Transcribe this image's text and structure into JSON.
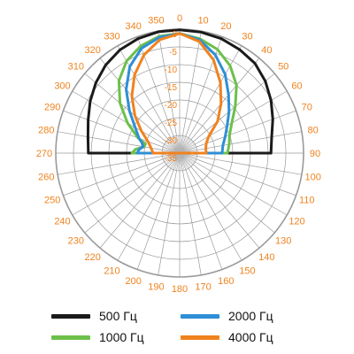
{
  "chart_data": {
    "type": "polar-line",
    "angle_ticks": [
      "0",
      "10",
      "20",
      "30",
      "40",
      "50",
      "60",
      "70",
      "80",
      "90",
      "100",
      "110",
      "120",
      "130",
      "140",
      "150",
      "160",
      "170",
      "180",
      "190",
      "200",
      "210",
      "220",
      "230",
      "240",
      "250",
      "260",
      "270",
      "280",
      "290",
      "300",
      "310",
      "320",
      "330",
      "340",
      "350"
    ],
    "radial_ticks": [
      "0",
      "-5",
      "-10",
      "-15",
      "-20",
      "-25",
      "-30",
      "-35"
    ],
    "radial_range": [
      -35,
      0
    ],
    "grid": true,
    "series": [
      {
        "name": "500 Гц",
        "color": "#1a1a1a",
        "points": [
          [
            0,
            -0.2
          ],
          [
            10,
            -0.3
          ],
          [
            20,
            -0.6
          ],
          [
            30,
            -1.2
          ],
          [
            40,
            -1.9
          ],
          [
            50,
            -3.4
          ],
          [
            60,
            -5.2
          ],
          [
            70,
            -7.0
          ],
          [
            80,
            -8.6
          ],
          [
            90,
            -9.2
          ],
          [
            270,
            -9.2
          ],
          [
            280,
            -8.7
          ],
          [
            290,
            -7.5
          ],
          [
            300,
            -5.8
          ],
          [
            310,
            -4.1
          ],
          [
            320,
            -2.5
          ],
          [
            330,
            -1.3
          ],
          [
            340,
            -0.6
          ],
          [
            350,
            -0.2
          ],
          [
            360,
            -0.2
          ]
        ]
      },
      {
        "name": "1000 Гц",
        "color": "#6cc04a",
        "points": [
          [
            0,
            -1.2
          ],
          [
            10,
            -2.2
          ],
          [
            20,
            -3.8
          ],
          [
            30,
            -6.5
          ],
          [
            40,
            -10.0
          ],
          [
            50,
            -14.5
          ],
          [
            60,
            -18.0
          ],
          [
            70,
            -20.0
          ],
          [
            80,
            -20.8
          ],
          [
            90,
            -21.5
          ],
          [
            270,
            -21.5
          ],
          [
            275,
            -22.5
          ],
          [
            280,
            -24.8
          ],
          [
            285,
            -25.0
          ],
          [
            290,
            -22.5
          ],
          [
            300,
            -18.0
          ],
          [
            310,
            -13.0
          ],
          [
            320,
            -8.3
          ],
          [
            330,
            -5.0
          ],
          [
            340,
            -2.8
          ],
          [
            350,
            -1.5
          ],
          [
            360,
            -1.2
          ]
        ]
      },
      {
        "name": "2000 Гц",
        "color": "#2e8fd6",
        "points": [
          [
            0,
            -1.2
          ],
          [
            10,
            -2.5
          ],
          [
            20,
            -5.5
          ],
          [
            30,
            -9.3
          ],
          [
            40,
            -13.5
          ],
          [
            50,
            -16.8
          ],
          [
            60,
            -19.5
          ],
          [
            70,
            -21.3
          ],
          [
            80,
            -22.6
          ],
          [
            90,
            -23.0
          ],
          [
            270,
            -23.0
          ],
          [
            275,
            -23.5
          ],
          [
            280,
            -24.5
          ],
          [
            285,
            -24.0
          ],
          [
            290,
            -22.8
          ],
          [
            300,
            -20.5
          ],
          [
            310,
            -16.5
          ],
          [
            320,
            -11.5
          ],
          [
            330,
            -6.8
          ],
          [
            340,
            -3.5
          ],
          [
            350,
            -1.8
          ],
          [
            360,
            -1.2
          ]
        ]
      },
      {
        "name": "4000 Гц",
        "color": "#f0821e",
        "points": [
          [
            0,
            -1.2
          ],
          [
            10,
            -3.0
          ],
          [
            20,
            -7.0
          ],
          [
            30,
            -12.0
          ],
          [
            40,
            -16.8
          ],
          [
            50,
            -21.0
          ],
          [
            60,
            -25.5
          ],
          [
            70,
            -27.0
          ],
          [
            80,
            -27.5
          ],
          [
            90,
            -27.5
          ],
          [
            270,
            -27.5
          ],
          [
            275,
            -27.2
          ],
          [
            280,
            -26.8
          ],
          [
            290,
            -25.5
          ],
          [
            300,
            -22.5
          ],
          [
            310,
            -18.5
          ],
          [
            320,
            -14.0
          ],
          [
            330,
            -9.5
          ],
          [
            340,
            -5.5
          ],
          [
            350,
            -2.5
          ],
          [
            360,
            -1.2
          ]
        ]
      }
    ]
  },
  "legend": {
    "items": [
      {
        "label": "500 Гц",
        "color": "#1a1a1a"
      },
      {
        "label": "2000 Гц",
        "color": "#2e8fd6"
      },
      {
        "label": "1000 Гц",
        "color": "#6cc04a"
      },
      {
        "label": "4000 Гц",
        "color": "#f0821e"
      }
    ]
  }
}
